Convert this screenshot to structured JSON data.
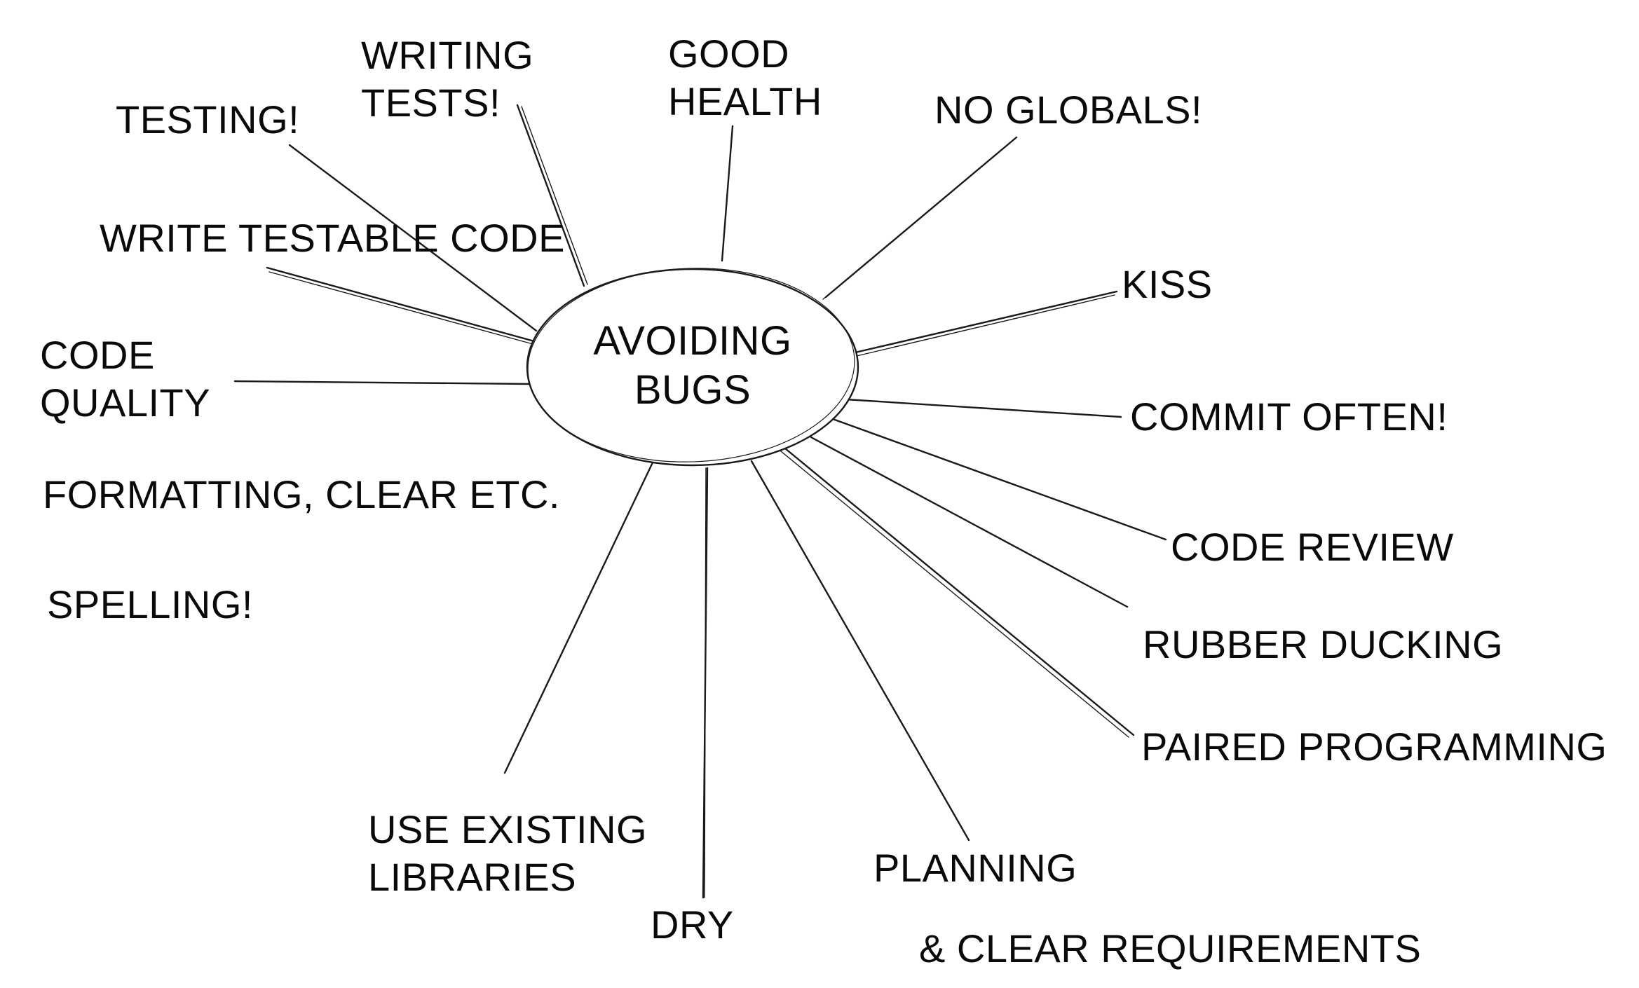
{
  "diagram": {
    "center": {
      "lines": [
        "AVOIDING",
        "BUGS"
      ]
    },
    "branches": [
      {
        "id": "testing",
        "lines": [
          "TESTING!"
        ]
      },
      {
        "id": "writing-tests",
        "lines": [
          "WRITING",
          "TESTS!"
        ]
      },
      {
        "id": "good-health",
        "lines": [
          "GOOD",
          "HEALTH"
        ]
      },
      {
        "id": "no-globals",
        "lines": [
          "NO GLOBALS!"
        ]
      },
      {
        "id": "write-testable-code",
        "lines": [
          "WRITE TESTABLE CODE"
        ]
      },
      {
        "id": "kiss",
        "lines": [
          "KISS"
        ]
      },
      {
        "id": "code-quality",
        "lines": [
          "CODE",
          "QUALITY"
        ]
      },
      {
        "id": "commit-often",
        "lines": [
          "COMMIT OFTEN!"
        ]
      },
      {
        "id": "code-review",
        "lines": [
          "CODE REVIEW"
        ]
      },
      {
        "id": "rubber-ducking",
        "lines": [
          "RUBBER DUCKING"
        ]
      },
      {
        "id": "paired-programming",
        "lines": [
          "PAIRED PROGRAMMING"
        ]
      },
      {
        "id": "planning",
        "lines": [
          "PLANNING"
        ]
      },
      {
        "id": "use-existing-libraries",
        "lines": [
          "USE EXISTING",
          "LIBRARIES"
        ]
      },
      {
        "id": "dry",
        "lines": [
          "DRY"
        ]
      }
    ],
    "notes": [
      {
        "id": "formatting-note",
        "text": "FORMATTING, CLEAR ETC."
      },
      {
        "id": "spelling-note",
        "text": "SPELLING!"
      },
      {
        "id": "clear-requirements-note",
        "text": "& CLEAR REQUIREMENTS"
      }
    ]
  }
}
